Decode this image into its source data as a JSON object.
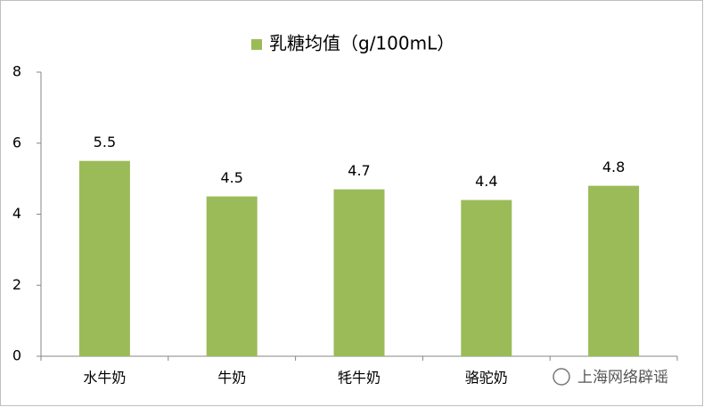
{
  "chart_data": {
    "type": "bar",
    "series": [
      {
        "name": "乳糖均值（g/100mL）",
        "color": "#9bbb59",
        "values": [
          5.5,
          4.5,
          4.7,
          4.4,
          4.8
        ]
      }
    ],
    "categories": [
      "水牛奶",
      "牛奶",
      "牦牛奶",
      "骆驼奶",
      null
    ],
    "ylim": [
      0,
      8
    ],
    "yticks": [
      0,
      2,
      4,
      6,
      8
    ],
    "grid": false,
    "legend": "top",
    "watermark": "上海网络辟谣"
  }
}
